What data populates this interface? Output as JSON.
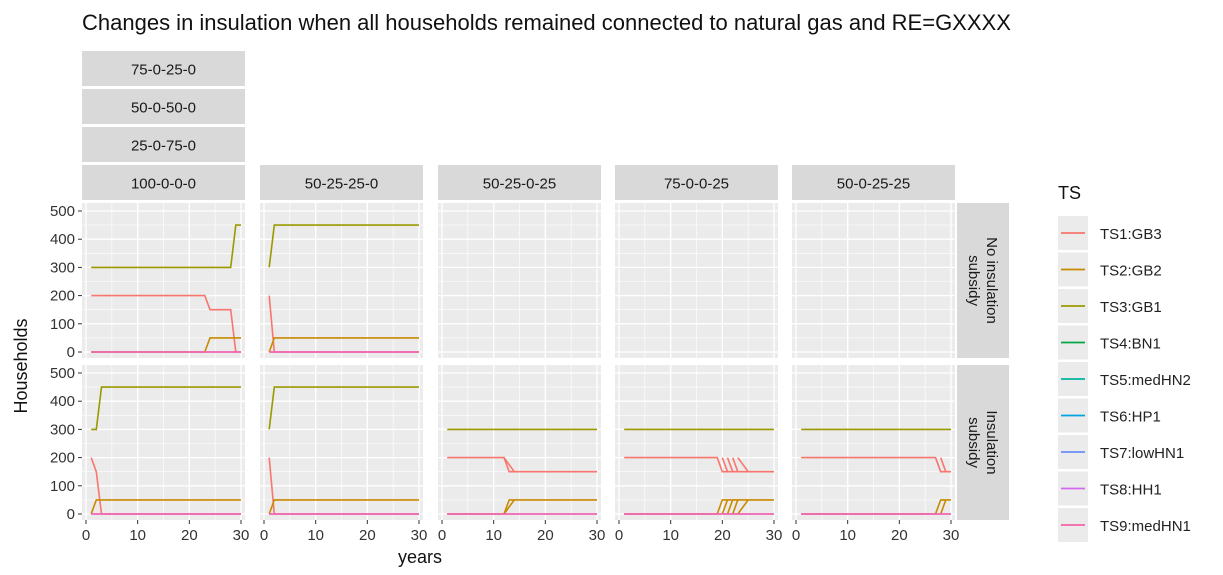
{
  "chart_data": {
    "type": "line",
    "title": "Changes in insulation when all households remained connected to natural gas and RE=GXXXX",
    "xlabel": "years",
    "ylabel": "Households",
    "xlim": [
      0,
      30
    ],
    "ylim": [
      0,
      500
    ],
    "x_ticks": [
      0,
      10,
      20,
      30
    ],
    "y_ticks": [
      0,
      100,
      200,
      300,
      400,
      500
    ],
    "grid": true,
    "legend_position": "right",
    "legend": {
      "title": "TS",
      "entries": [
        {
          "label": "TS1:GB3",
          "color": "#f8766d"
        },
        {
          "label": "TS2:GB2",
          "color": "#c98a00"
        },
        {
          "label": "TS3:GB1",
          "color": "#9a9a00"
        },
        {
          "label": "TS4:BN1",
          "color": "#00a845"
        },
        {
          "label": "TS5:medHN2",
          "color": "#00b3a0"
        },
        {
          "label": "TS6:HP1",
          "color": "#00a5e0"
        },
        {
          "label": "TS7:lowHN1",
          "color": "#6b8ff5"
        },
        {
          "label": "TS8:HH1",
          "color": "#d36bf0"
        },
        {
          "label": "TS9:medHN1",
          "color": "#f563a8"
        }
      ]
    },
    "column_strip_labels": [
      [
        "75-0-25-0",
        "50-0-50-0",
        "25-0-75-0",
        "100-0-0-0"
      ],
      [
        "50-25-25-0"
      ],
      [
        "50-25-0-25"
      ],
      [
        "75-0-0-25"
      ],
      [
        "50-0-25-25"
      ]
    ],
    "row_strip_labels": [
      [
        "No insulation",
        "subsidy"
      ],
      [
        "Insulation",
        "subsidy"
      ]
    ],
    "panels": [
      {
        "row": 0,
        "col": 0,
        "series": [
          {
            "ts": "TS1:GB3",
            "points": [
              [
                1,
                200
              ],
              [
                23,
                200
              ],
              [
                24,
                150
              ],
              [
                28,
                150
              ],
              [
                29,
                0
              ],
              [
                30,
                0
              ]
            ]
          },
          {
            "ts": "TS2:GB2",
            "points": [
              [
                1,
                0
              ],
              [
                23,
                0
              ],
              [
                24,
                50
              ],
              [
                30,
                50
              ]
            ]
          },
          {
            "ts": "TS3:GB1",
            "points": [
              [
                1,
                300
              ],
              [
                28,
                300
              ],
              [
                29,
                450
              ],
              [
                30,
                450
              ]
            ]
          },
          {
            "ts": "TS8:HH1",
            "points": [
              [
                1,
                0
              ],
              [
                30,
                0
              ]
            ]
          },
          {
            "ts": "TS9:medHN1",
            "points": [
              [
                1,
                0
              ],
              [
                30,
                0
              ]
            ]
          }
        ]
      },
      {
        "row": 0,
        "col": 1,
        "series": [
          {
            "ts": "TS1:GB3",
            "points": [
              [
                1,
                200
              ],
              [
                2,
                0
              ],
              [
                30,
                0
              ]
            ]
          },
          {
            "ts": "TS2:GB2",
            "points": [
              [
                1,
                0
              ],
              [
                2,
                50
              ],
              [
                30,
                50
              ]
            ]
          },
          {
            "ts": "TS3:GB1",
            "points": [
              [
                1,
                300
              ],
              [
                2,
                450
              ],
              [
                30,
                450
              ]
            ]
          },
          {
            "ts": "TS8:HH1",
            "points": [
              [
                1,
                0
              ],
              [
                30,
                0
              ]
            ]
          },
          {
            "ts": "TS9:medHN1",
            "points": [
              [
                1,
                0
              ],
              [
                30,
                0
              ]
            ]
          }
        ]
      },
      {
        "row": 0,
        "col": 2,
        "series": []
      },
      {
        "row": 0,
        "col": 3,
        "series": []
      },
      {
        "row": 0,
        "col": 4,
        "series": []
      },
      {
        "row": 1,
        "col": 0,
        "series": [
          {
            "ts": "TS1:GB3",
            "points": [
              [
                1,
                200
              ],
              [
                2,
                150
              ],
              [
                3,
                0
              ],
              [
                30,
                0
              ]
            ]
          },
          {
            "ts": "TS2:GB2",
            "points": [
              [
                1,
                0
              ],
              [
                2,
                50
              ],
              [
                30,
                50
              ]
            ]
          },
          {
            "ts": "TS3:GB1",
            "points": [
              [
                1,
                300
              ],
              [
                2,
                300
              ],
              [
                3,
                450
              ],
              [
                30,
                450
              ]
            ]
          },
          {
            "ts": "TS8:HH1",
            "points": [
              [
                1,
                0
              ],
              [
                30,
                0
              ]
            ]
          },
          {
            "ts": "TS9:medHN1",
            "points": [
              [
                1,
                0
              ],
              [
                30,
                0
              ]
            ]
          }
        ]
      },
      {
        "row": 1,
        "col": 1,
        "series": [
          {
            "ts": "TS1:GB3",
            "points": [
              [
                1,
                200
              ],
              [
                2,
                0
              ],
              [
                30,
                0
              ]
            ]
          },
          {
            "ts": "TS2:GB2",
            "points": [
              [
                1,
                0
              ],
              [
                2,
                50
              ],
              [
                30,
                50
              ]
            ]
          },
          {
            "ts": "TS3:GB1",
            "points": [
              [
                1,
                300
              ],
              [
                2,
                450
              ],
              [
                30,
                450
              ]
            ]
          },
          {
            "ts": "TS8:HH1",
            "points": [
              [
                1,
                0
              ],
              [
                30,
                0
              ]
            ]
          },
          {
            "ts": "TS9:medHN1",
            "points": [
              [
                1,
                0
              ],
              [
                30,
                0
              ]
            ]
          }
        ]
      },
      {
        "row": 1,
        "col": 2,
        "series": [
          {
            "ts": "TS1:GB3",
            "points": [
              [
                1,
                200
              ],
              [
                12,
                200
              ],
              [
                13,
                150
              ],
              [
                30,
                150
              ]
            ]
          },
          {
            "ts": "TS1:GB3",
            "points": [
              [
                12,
                200
              ],
              [
                14,
                150
              ]
            ]
          },
          {
            "ts": "TS2:GB2",
            "points": [
              [
                1,
                0
              ],
              [
                12,
                0
              ],
              [
                13,
                50
              ],
              [
                30,
                50
              ]
            ]
          },
          {
            "ts": "TS2:GB2",
            "points": [
              [
                12,
                0
              ],
              [
                14,
                50
              ]
            ]
          },
          {
            "ts": "TS3:GB1",
            "points": [
              [
                1,
                300
              ],
              [
                30,
                300
              ]
            ]
          },
          {
            "ts": "TS8:HH1",
            "points": [
              [
                1,
                0
              ],
              [
                30,
                0
              ]
            ]
          },
          {
            "ts": "TS9:medHN1",
            "points": [
              [
                1,
                0
              ],
              [
                30,
                0
              ]
            ]
          }
        ]
      },
      {
        "row": 1,
        "col": 3,
        "series": [
          {
            "ts": "TS1:GB3",
            "points": [
              [
                1,
                200
              ],
              [
                19,
                200
              ],
              [
                20,
                150
              ],
              [
                30,
                150
              ]
            ]
          },
          {
            "ts": "TS1:GB3",
            "points": [
              [
                20,
                200
              ],
              [
                21,
                150
              ]
            ]
          },
          {
            "ts": "TS1:GB3",
            "points": [
              [
                21,
                200
              ],
              [
                22,
                150
              ]
            ]
          },
          {
            "ts": "TS1:GB3",
            "points": [
              [
                22,
                200
              ],
              [
                23,
                150
              ]
            ]
          },
          {
            "ts": "TS1:GB3",
            "points": [
              [
                23,
                200
              ],
              [
                25,
                150
              ]
            ]
          },
          {
            "ts": "TS2:GB2",
            "points": [
              [
                1,
                0
              ],
              [
                19,
                0
              ],
              [
                20,
                50
              ],
              [
                30,
                50
              ]
            ]
          },
          {
            "ts": "TS2:GB2",
            "points": [
              [
                20,
                0
              ],
              [
                21,
                50
              ]
            ]
          },
          {
            "ts": "TS2:GB2",
            "points": [
              [
                21,
                0
              ],
              [
                22,
                50
              ]
            ]
          },
          {
            "ts": "TS2:GB2",
            "points": [
              [
                22,
                0
              ],
              [
                23,
                50
              ]
            ]
          },
          {
            "ts": "TS2:GB2",
            "points": [
              [
                23,
                0
              ],
              [
                25,
                50
              ]
            ]
          },
          {
            "ts": "TS3:GB1",
            "points": [
              [
                1,
                300
              ],
              [
                30,
                300
              ]
            ]
          },
          {
            "ts": "TS8:HH1",
            "points": [
              [
                1,
                0
              ],
              [
                30,
                0
              ]
            ]
          },
          {
            "ts": "TS9:medHN1",
            "points": [
              [
                1,
                0
              ],
              [
                30,
                0
              ]
            ]
          }
        ]
      },
      {
        "row": 1,
        "col": 4,
        "series": [
          {
            "ts": "TS1:GB3",
            "points": [
              [
                1,
                200
              ],
              [
                27,
                200
              ],
              [
                28,
                150
              ],
              [
                30,
                150
              ]
            ]
          },
          {
            "ts": "TS1:GB3",
            "points": [
              [
                28,
                200
              ],
              [
                29,
                150
              ]
            ]
          },
          {
            "ts": "TS2:GB2",
            "points": [
              [
                1,
                0
              ],
              [
                27,
                0
              ],
              [
                28,
                50
              ],
              [
                30,
                50
              ]
            ]
          },
          {
            "ts": "TS2:GB2",
            "points": [
              [
                28,
                0
              ],
              [
                29,
                50
              ]
            ]
          },
          {
            "ts": "TS3:GB1",
            "points": [
              [
                1,
                300
              ],
              [
                30,
                300
              ]
            ]
          },
          {
            "ts": "TS8:HH1",
            "points": [
              [
                1,
                0
              ],
              [
                30,
                0
              ]
            ]
          },
          {
            "ts": "TS9:medHN1",
            "points": [
              [
                1,
                0
              ],
              [
                30,
                0
              ]
            ]
          }
        ]
      }
    ]
  }
}
